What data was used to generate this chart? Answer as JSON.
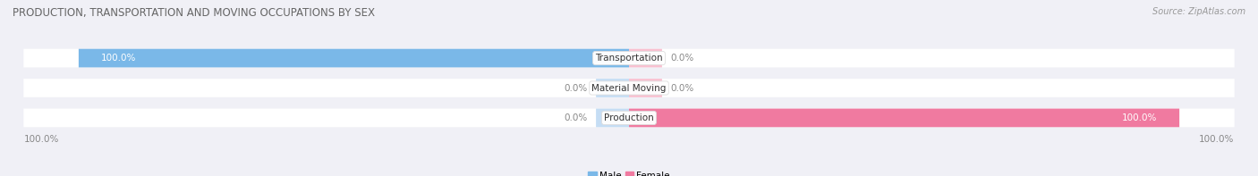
{
  "title": "PRODUCTION, TRANSPORTATION AND MOVING OCCUPATIONS BY SEX",
  "source": "Source: ZipAtlas.com",
  "categories": [
    "Transportation",
    "Material Moving",
    "Production"
  ],
  "male_values": [
    100.0,
    0.0,
    0.0
  ],
  "female_values": [
    0.0,
    0.0,
    100.0
  ],
  "male_color": "#7ab8e8",
  "female_color": "#f07aa0",
  "male_color_light": "#c5ddf4",
  "female_color_light": "#f9c0d0",
  "bar_bg_color": "#e2e2ea",
  "fig_bg_color": "#f0f0f6",
  "title_color": "#666666",
  "source_color": "#999999",
  "label_color_on_bar": "#ffffff",
  "label_color_off_bar": "#888888",
  "title_fontsize": 8.5,
  "source_fontsize": 7,
  "label_fontsize": 7.5,
  "legend_fontsize": 7.5,
  "axis_label_fontsize": 7.5
}
